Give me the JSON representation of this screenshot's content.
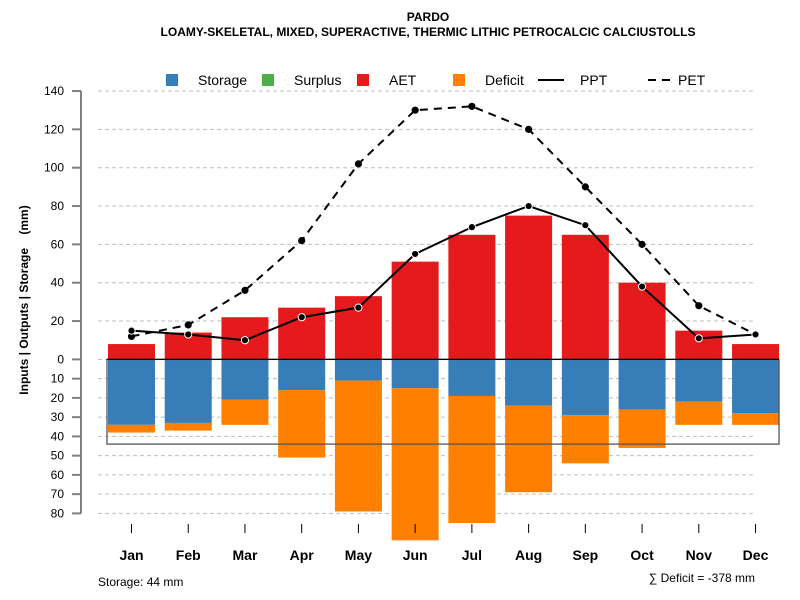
{
  "chart_data": {
    "type": "bar",
    "title": "PARDO",
    "subtitle": "LOAMY-SKELETAL, MIXED, SUPERACTIVE, THERMIC LITHIC PETROCALCIC CALCIUSTOLLS",
    "ylabel": "Inputs | Outputs | Storage    (mm)",
    "xlabel": "",
    "categories": [
      "Jan",
      "Feb",
      "Mar",
      "Apr",
      "May",
      "Jun",
      "Jul",
      "Aug",
      "Sep",
      "Oct",
      "Nov",
      "Dec"
    ],
    "ylim_top": [
      0,
      140
    ],
    "ylim_bottom": [
      0,
      80
    ],
    "yticks_top": [
      0,
      20,
      40,
      60,
      80,
      100,
      120,
      140
    ],
    "yticks_bottom": [
      10,
      20,
      30,
      40,
      50,
      60,
      70,
      80
    ],
    "grid": true,
    "legend_position": "top",
    "legend": [
      {
        "name": "Storage",
        "kind": "box",
        "color": "#377EB8"
      },
      {
        "name": "Surplus",
        "kind": "box",
        "color": "#4DAF4A"
      },
      {
        "name": "AET",
        "kind": "box",
        "color": "#E41A1C"
      },
      {
        "name": "Deficit",
        "kind": "box",
        "color": "#FF7F00"
      },
      {
        "name": "PPT",
        "kind": "solid-line",
        "color": "#000000"
      },
      {
        "name": "PET",
        "kind": "dashed-line",
        "color": "#000000"
      }
    ],
    "series": [
      {
        "name": "AET",
        "kind": "bar-up",
        "color": "#E41A1C",
        "values": [
          8,
          14,
          22,
          27,
          33,
          51,
          65,
          75,
          65,
          40,
          15,
          8
        ]
      },
      {
        "name": "Surplus",
        "kind": "bar-up",
        "color": "#4DAF4A",
        "values": [
          0,
          0,
          0,
          0,
          0,
          0,
          0,
          0,
          0,
          0,
          0,
          0
        ]
      },
      {
        "name": "Storage",
        "kind": "bar-down",
        "color": "#377EB8",
        "values": [
          34,
          33,
          21,
          16,
          11,
          15,
          19,
          24,
          29,
          26,
          22,
          28
        ]
      },
      {
        "name": "Deficit",
        "kind": "bar-down-stacked",
        "color": "#FF7F00",
        "values": [
          4,
          4,
          13,
          35,
          68,
          79,
          66,
          45,
          25,
          20,
          12,
          6
        ]
      },
      {
        "name": "PPT",
        "kind": "line-solid",
        "color": "#000000",
        "values": [
          15,
          13,
          10,
          22,
          27,
          55,
          69,
          80,
          70,
          38,
          11,
          13
        ]
      },
      {
        "name": "PET",
        "kind": "line-dashed",
        "color": "#000000",
        "values": [
          12,
          18,
          36,
          62,
          102,
          130,
          132,
          120,
          90,
          60,
          28,
          13
        ]
      }
    ],
    "storage_capacity": 44,
    "annotations": {
      "storage": "Storage: 44 mm",
      "deficit_sum": "∑ Deficit = -378 mm"
    }
  }
}
